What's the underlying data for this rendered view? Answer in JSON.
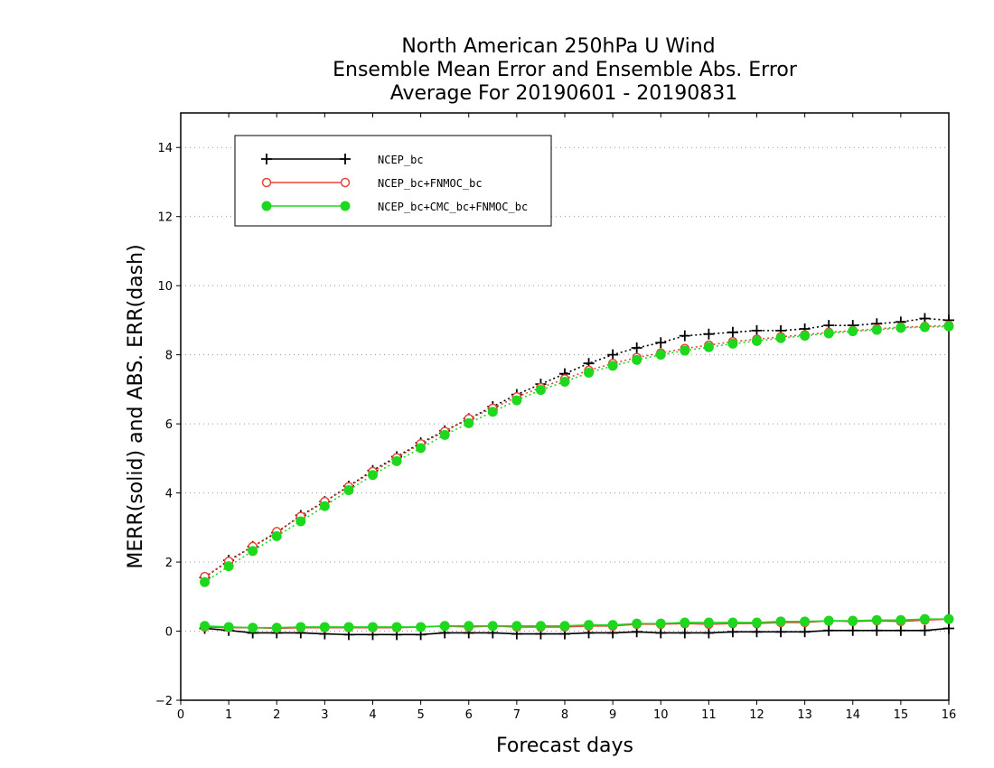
{
  "chart_data": {
    "type": "line",
    "title_lines": [
      "North American 250hPa U Wind",
      "Ensemble Mean Error and Ensemble Abs. Error",
      "Average For 20190601 - 20190831"
    ],
    "xlabel": "Forecast days",
    "ylabel": "MERR(solid) and ABS. ERR(dash)",
    "xlim": [
      0,
      16
    ],
    "ylim": [
      -2,
      15
    ],
    "x_ticks": [
      "0",
      "1",
      "2",
      "3",
      "4",
      "5",
      "6",
      "7",
      "8",
      "9",
      "10",
      "11",
      "12",
      "13",
      "14",
      "15",
      "16"
    ],
    "y_ticks": [
      "−2",
      "0",
      "2",
      "4",
      "6",
      "8",
      "10",
      "12",
      "14"
    ],
    "grid": "horizontal dotted",
    "legend_position": "top-left",
    "x": [
      0.5,
      1,
      1.5,
      2,
      2.5,
      3,
      3.5,
      4,
      4.5,
      5,
      5.5,
      6,
      6.5,
      7,
      7.5,
      8,
      8.5,
      9,
      9.5,
      10,
      10.5,
      11,
      11.5,
      12,
      12.5,
      13,
      13.5,
      14,
      14.5,
      15,
      15.5,
      16
    ],
    "series": [
      {
        "name": "NCEP_bc",
        "color": "#000000",
        "marker": "plus",
        "merr": [
          0.08,
          0.02,
          -0.05,
          -0.05,
          -0.05,
          -0.08,
          -0.1,
          -0.1,
          -0.1,
          -0.1,
          -0.05,
          -0.05,
          -0.05,
          -0.08,
          -0.08,
          -0.08,
          -0.05,
          -0.05,
          -0.02,
          -0.05,
          -0.05,
          -0.05,
          -0.02,
          -0.02,
          -0.02,
          -0.02,
          0.02,
          0.02,
          0.02,
          0.02,
          0.02,
          0.08
        ],
        "abserr": [
          1.55,
          2.05,
          2.45,
          2.85,
          3.35,
          3.75,
          4.2,
          4.65,
          5.05,
          5.45,
          5.8,
          6.15,
          6.5,
          6.85,
          7.15,
          7.45,
          7.75,
          8.0,
          8.2,
          8.35,
          8.55,
          8.6,
          8.65,
          8.7,
          8.7,
          8.75,
          8.85,
          8.85,
          8.9,
          8.95,
          9.05,
          9.0
        ]
      },
      {
        "name": "NCEP_bc+FNMOC_bc",
        "color": "#e8443a",
        "marker": "open-circle",
        "merr": [
          0.12,
          0.1,
          0.1,
          0.08,
          0.1,
          0.1,
          0.1,
          0.1,
          0.1,
          0.12,
          0.15,
          0.12,
          0.15,
          0.12,
          0.12,
          0.12,
          0.15,
          0.15,
          0.2,
          0.2,
          0.22,
          0.2,
          0.22,
          0.22,
          0.25,
          0.25,
          0.3,
          0.28,
          0.3,
          0.28,
          0.32,
          0.35
        ],
        "abserr": [
          1.58,
          2.02,
          2.45,
          2.88,
          3.32,
          3.75,
          4.18,
          4.62,
          5.02,
          5.42,
          5.78,
          6.15,
          6.45,
          6.78,
          7.05,
          7.3,
          7.55,
          7.75,
          7.92,
          8.05,
          8.18,
          8.28,
          8.38,
          8.45,
          8.52,
          8.58,
          8.65,
          8.7,
          8.75,
          8.8,
          8.82,
          8.85
        ]
      },
      {
        "name": "NCEP_bc+CMC_bc+FNMOC_bc",
        "color": "#1ed81e",
        "marker": "filled-circle",
        "merr": [
          0.15,
          0.12,
          0.1,
          0.1,
          0.12,
          0.12,
          0.12,
          0.12,
          0.12,
          0.12,
          0.15,
          0.15,
          0.15,
          0.15,
          0.15,
          0.15,
          0.18,
          0.18,
          0.22,
          0.22,
          0.25,
          0.25,
          0.25,
          0.25,
          0.28,
          0.28,
          0.3,
          0.3,
          0.32,
          0.32,
          0.35,
          0.35
        ],
        "abserr": [
          1.42,
          1.88,
          2.32,
          2.75,
          3.18,
          3.62,
          4.08,
          4.52,
          4.92,
          5.3,
          5.68,
          6.02,
          6.35,
          6.68,
          6.98,
          7.22,
          7.48,
          7.68,
          7.85,
          8.0,
          8.12,
          8.22,
          8.32,
          8.4,
          8.48,
          8.55,
          8.62,
          8.68,
          8.72,
          8.78,
          8.8,
          8.82
        ]
      }
    ]
  }
}
